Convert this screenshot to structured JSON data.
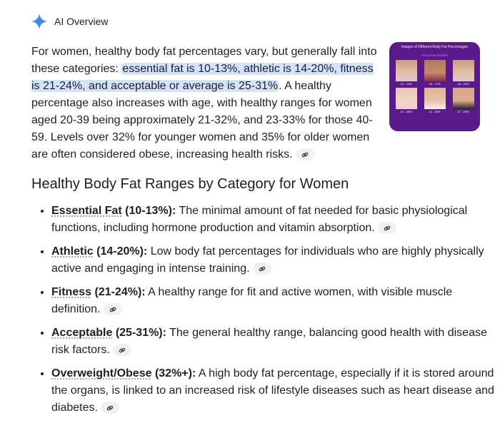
{
  "header": {
    "title": "AI Overview",
    "icon": "sparkle-icon",
    "accent": "#4285f4"
  },
  "intro": {
    "before": "For women, healthy body fat percentages vary, but generally fall into these categories: ",
    "highlight": "essential fat is 10-13%, athletic is 14-20%, fit­ness is 21-24%, and acceptable or average is 25-31%",
    "after": ". A healthy percentage also increases with age, with healthy ranges for women aged 20-39 being approximately 21-32%, and 23-33% for those 40-59. Levels over 32% for younger women and 35% for older women are often considered obese, increasing health risks."
  },
  "thumbnail": {
    "title": "Images of Different Body Fat Percentages",
    "banner": "ATHLEAN RANGE",
    "captions": [
      "10 - 12%",
      "15 - 17%",
      "18 - 20%",
      "21 - 23%",
      "24 - 26%",
      "27 - 29%"
    ]
  },
  "section": {
    "title": "Healthy Body Fat Ranges by Category for Women",
    "items": [
      {
        "term": "Essential Fat",
        "range": " (10-13%):",
        "text": " The minimal amount of fat needed for basic physiological functions, including hormone production and vitamin absorption."
      },
      {
        "term": "Athletic",
        "range": " (14-20%):",
        "text": " Low body fat percentages for individuals who are highly physically active and engaging in intense training."
      },
      {
        "term": "Fitness",
        "range": " (21-24%):",
        "text": " A healthy range for fit and active women, with visible muscle definition."
      },
      {
        "term": "Acceptable",
        "range": " (25-31%):",
        "text": " The general healthy range, balancing good health with disease risk factors."
      },
      {
        "term": "Overweight/Obese",
        "range": " (32%+):",
        "text": " A high body fat percentage, especially if it is stored around the organs, is linked to an increased risk of lifestyle diseases such as heart disease and diabetes."
      }
    ]
  }
}
